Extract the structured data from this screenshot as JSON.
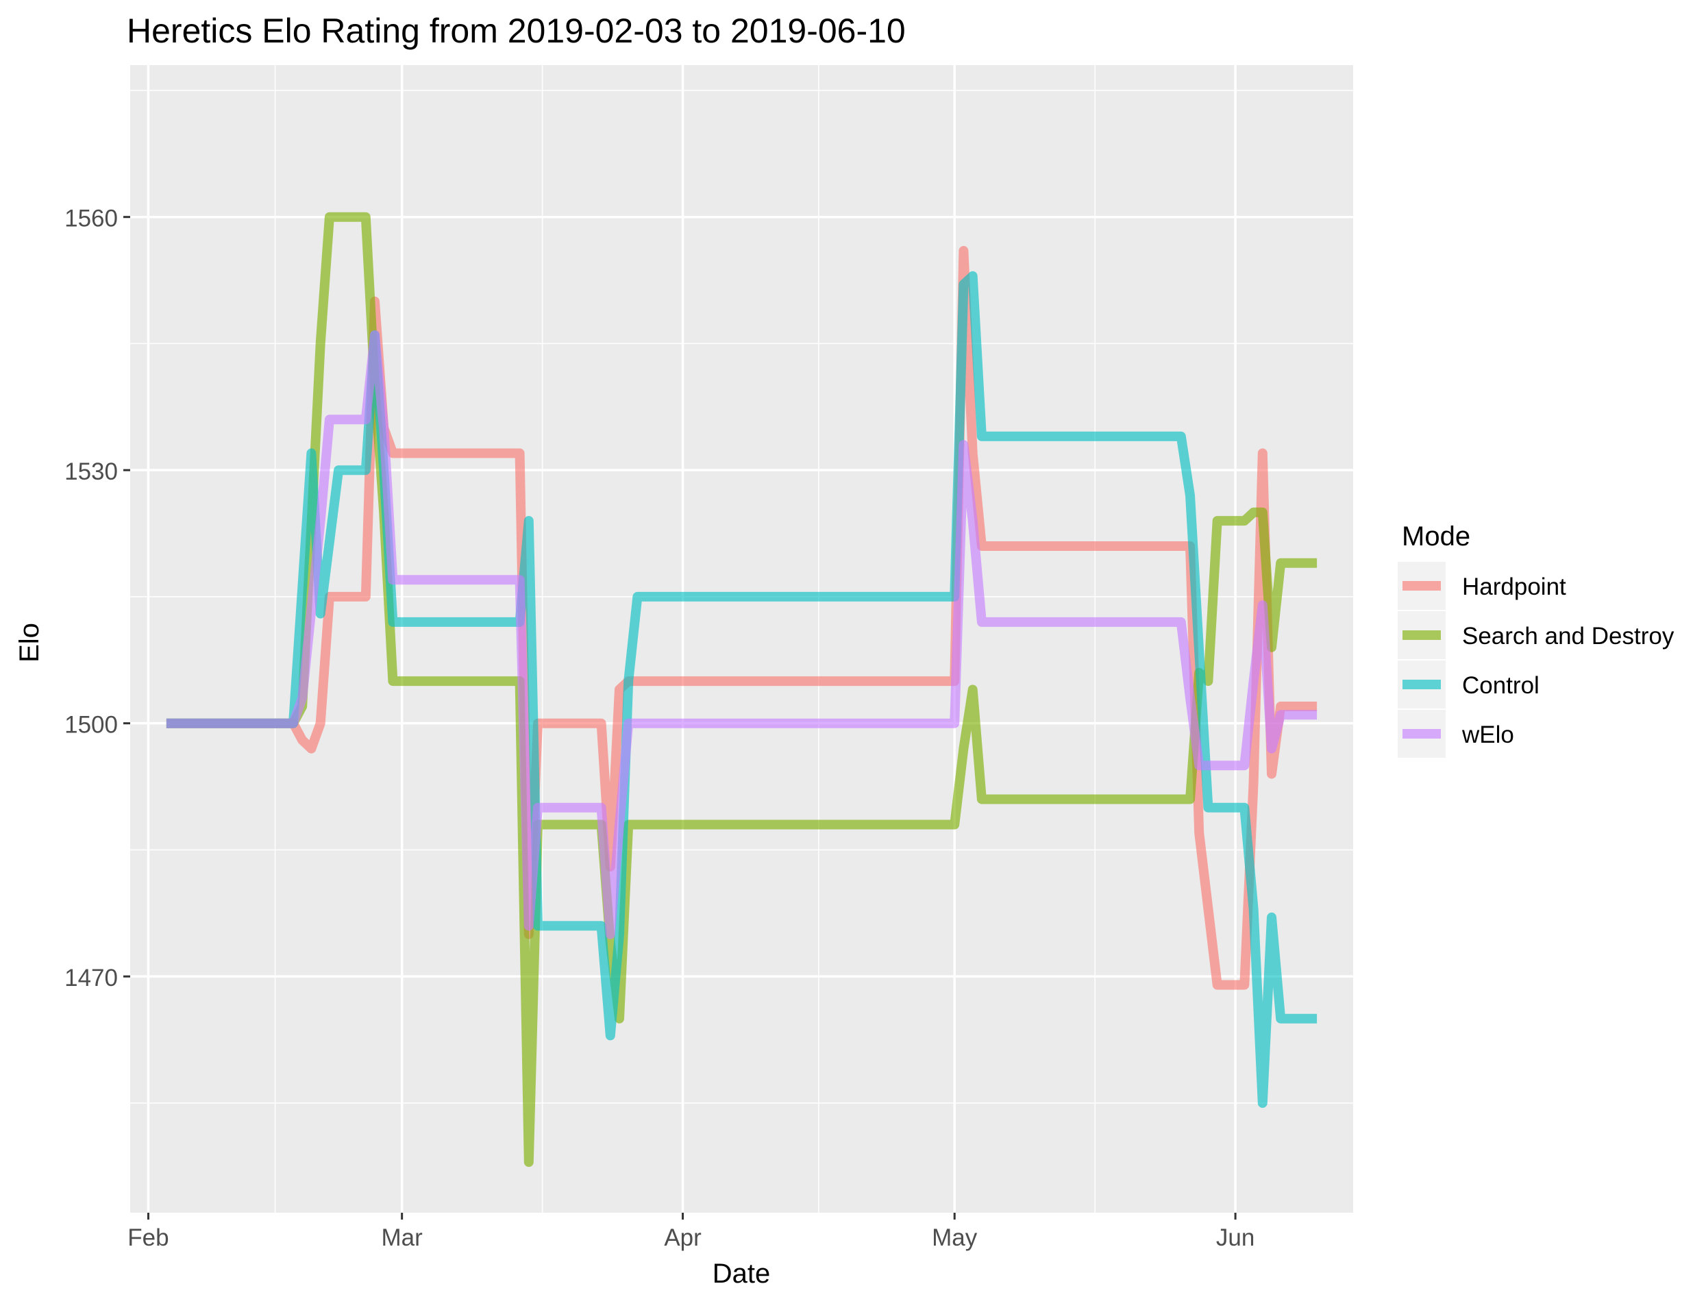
{
  "chart_data": {
    "type": "line",
    "title": "Heretics Elo Rating from 2019-02-03 to 2019-06-10",
    "xlabel": "Date",
    "ylabel": "Elo",
    "x_range": [
      "2019-01-30",
      "2019-06-14"
    ],
    "ylim": [
      1442,
      1578
    ],
    "x_ticks": [
      {
        "date": "2019-02-01",
        "label": "Feb"
      },
      {
        "date": "2019-03-01",
        "label": "Mar"
      },
      {
        "date": "2019-04-01",
        "label": "Apr"
      },
      {
        "date": "2019-05-01",
        "label": "May"
      },
      {
        "date": "2019-06-01",
        "label": "Jun"
      }
    ],
    "y_ticks": [
      1470,
      1500,
      1530,
      1560
    ],
    "grid": true,
    "legend": {
      "title": "Mode",
      "position": "right"
    },
    "series": [
      {
        "name": "Hardpoint",
        "color": "#F8766D",
        "points": [
          [
            "2019-02-03",
            1500
          ],
          [
            "2019-02-17",
            1500
          ],
          [
            "2019-02-18",
            1498
          ],
          [
            "2019-02-19",
            1497
          ],
          [
            "2019-02-20",
            1500
          ],
          [
            "2019-02-21",
            1515
          ],
          [
            "2019-02-25",
            1515
          ],
          [
            "2019-02-26",
            1550
          ],
          [
            "2019-02-27",
            1535
          ],
          [
            "2019-02-28",
            1532
          ],
          [
            "2019-03-14",
            1532
          ],
          [
            "2019-03-15",
            1475
          ],
          [
            "2019-03-16",
            1500
          ],
          [
            "2019-03-23",
            1500
          ],
          [
            "2019-03-24",
            1483
          ],
          [
            "2019-03-25",
            1504
          ],
          [
            "2019-03-26",
            1505
          ],
          [
            "2019-05-01",
            1505
          ],
          [
            "2019-05-02",
            1556
          ],
          [
            "2019-05-03",
            1532
          ],
          [
            "2019-05-04",
            1521
          ],
          [
            "2019-05-27",
            1521
          ],
          [
            "2019-05-28",
            1487
          ],
          [
            "2019-05-30",
            1469
          ],
          [
            "2019-06-02",
            1469
          ],
          [
            "2019-06-03",
            1493
          ],
          [
            "2019-06-04",
            1532
          ],
          [
            "2019-06-05",
            1494
          ],
          [
            "2019-06-06",
            1502
          ],
          [
            "2019-06-10",
            1502
          ]
        ]
      },
      {
        "name": "Search and Destroy",
        "color": "#7CAE00",
        "points": [
          [
            "2019-02-03",
            1500
          ],
          [
            "2019-02-17",
            1500
          ],
          [
            "2019-02-18",
            1502
          ],
          [
            "2019-02-20",
            1545
          ],
          [
            "2019-02-21",
            1560
          ],
          [
            "2019-02-25",
            1560
          ],
          [
            "2019-02-26",
            1540
          ],
          [
            "2019-02-27",
            1525
          ],
          [
            "2019-02-28",
            1505
          ],
          [
            "2019-03-14",
            1505
          ],
          [
            "2019-03-15",
            1448
          ],
          [
            "2019-03-16",
            1488
          ],
          [
            "2019-03-23",
            1488
          ],
          [
            "2019-03-24",
            1474
          ],
          [
            "2019-03-25",
            1465
          ],
          [
            "2019-03-26",
            1488
          ],
          [
            "2019-05-01",
            1488
          ],
          [
            "2019-05-02",
            1497
          ],
          [
            "2019-05-03",
            1504
          ],
          [
            "2019-05-04",
            1491
          ],
          [
            "2019-05-27",
            1491
          ],
          [
            "2019-05-28",
            1506
          ],
          [
            "2019-05-29",
            1505
          ],
          [
            "2019-05-30",
            1524
          ],
          [
            "2019-06-02",
            1524
          ],
          [
            "2019-06-03",
            1525
          ],
          [
            "2019-06-04",
            1525
          ],
          [
            "2019-06-05",
            1509
          ],
          [
            "2019-06-06",
            1519
          ],
          [
            "2019-06-10",
            1519
          ]
        ]
      },
      {
        "name": "Control",
        "color": "#00BFC4",
        "points": [
          [
            "2019-02-03",
            1500
          ],
          [
            "2019-02-17",
            1500
          ],
          [
            "2019-02-19",
            1532
          ],
          [
            "2019-02-20",
            1513
          ],
          [
            "2019-02-22",
            1530
          ],
          [
            "2019-02-25",
            1530
          ],
          [
            "2019-02-26",
            1546
          ],
          [
            "2019-02-27",
            1530
          ],
          [
            "2019-02-28",
            1512
          ],
          [
            "2019-03-14",
            1512
          ],
          [
            "2019-03-15",
            1524
          ],
          [
            "2019-03-16",
            1476
          ],
          [
            "2019-03-23",
            1476
          ],
          [
            "2019-03-24",
            1463
          ],
          [
            "2019-03-25",
            1475
          ],
          [
            "2019-03-26",
            1505
          ],
          [
            "2019-03-27",
            1515
          ],
          [
            "2019-05-01",
            1515
          ],
          [
            "2019-05-02",
            1552
          ],
          [
            "2019-05-03",
            1553
          ],
          [
            "2019-05-04",
            1534
          ],
          [
            "2019-05-26",
            1534
          ],
          [
            "2019-05-27",
            1527
          ],
          [
            "2019-05-29",
            1490
          ],
          [
            "2019-06-02",
            1490
          ],
          [
            "2019-06-03",
            1478
          ],
          [
            "2019-06-04",
            1455
          ],
          [
            "2019-06-05",
            1477
          ],
          [
            "2019-06-06",
            1465
          ],
          [
            "2019-06-10",
            1465
          ]
        ]
      },
      {
        "name": "wElo",
        "color": "#C77CFF",
        "points": [
          [
            "2019-02-03",
            1500
          ],
          [
            "2019-02-17",
            1500
          ],
          [
            "2019-02-18",
            1503
          ],
          [
            "2019-02-20",
            1524
          ],
          [
            "2019-02-21",
            1536
          ],
          [
            "2019-02-25",
            1536
          ],
          [
            "2019-02-26",
            1546
          ],
          [
            "2019-02-27",
            1535
          ],
          [
            "2019-02-28",
            1517
          ],
          [
            "2019-03-14",
            1517
          ],
          [
            "2019-03-15",
            1476
          ],
          [
            "2019-03-16",
            1490
          ],
          [
            "2019-03-23",
            1490
          ],
          [
            "2019-03-24",
            1475
          ],
          [
            "2019-03-25",
            1488
          ],
          [
            "2019-03-26",
            1500
          ],
          [
            "2019-05-01",
            1500
          ],
          [
            "2019-05-02",
            1533
          ],
          [
            "2019-05-03",
            1524
          ],
          [
            "2019-05-04",
            1512
          ],
          [
            "2019-05-26",
            1512
          ],
          [
            "2019-05-27",
            1503
          ],
          [
            "2019-05-28",
            1495
          ],
          [
            "2019-06-02",
            1495
          ],
          [
            "2019-06-03",
            1505
          ],
          [
            "2019-06-04",
            1514
          ],
          [
            "2019-06-05",
            1497
          ],
          [
            "2019-06-06",
            1501
          ],
          [
            "2019-06-10",
            1501
          ]
        ]
      }
    ]
  }
}
